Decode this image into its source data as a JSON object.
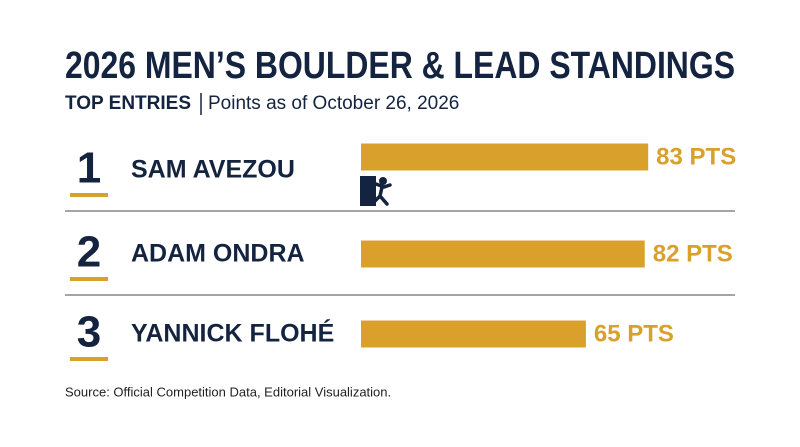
{
  "chart_data": {
    "type": "bar",
    "orientation": "horizontal",
    "title": "2026 MEN’S BOULDER & LEAD STANDINGS",
    "subtitle_label": "TOP ENTRIES",
    "subtitle": "Points as of October 26, 2026",
    "ranks": [
      "1",
      "2",
      "3"
    ],
    "categories": [
      "SAM AVEZOU",
      "ADAM ONDRA",
      "YANNICK FLOHÉ"
    ],
    "values": [
      83,
      82,
      65
    ],
    "value_labels": [
      "83 PTS",
      "82 PTS",
      "65 PTS"
    ],
    "color": "#d9a02b",
    "source": "Source: Official Competition Data, Editorial Visualization."
  }
}
